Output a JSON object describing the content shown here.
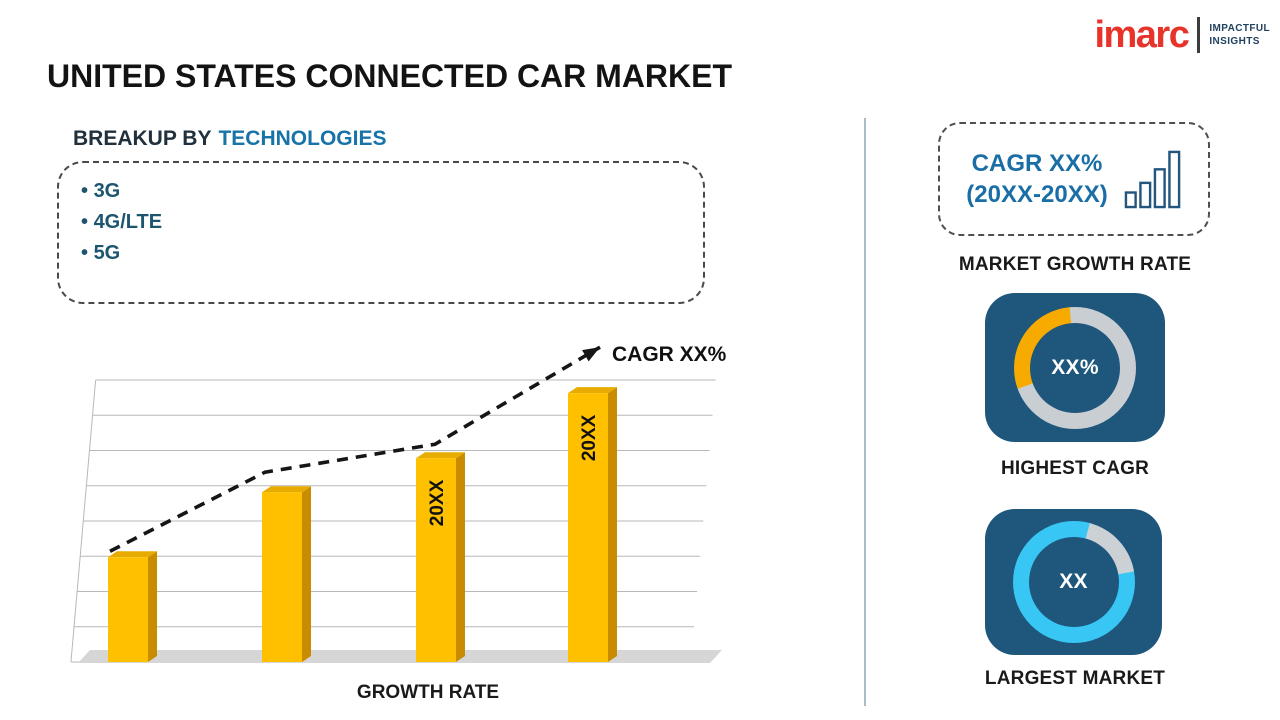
{
  "page": {
    "title": "UNITED STATES CONNECTED CAR MARKET"
  },
  "logo": {
    "brand": "imarc",
    "tagline_line1": "IMPACTFUL",
    "tagline_line2": "INSIGHTS"
  },
  "breakup": {
    "heading_prefix": "BREAKUP BY",
    "heading_accent": "TECHNOLOGIES",
    "items": [
      "3G",
      "4G/LTE",
      "5G"
    ]
  },
  "chart_data": {
    "type": "bar",
    "title": "",
    "categories": [
      "",
      "",
      "20XX",
      "20XX"
    ],
    "values": [
      37,
      60,
      72,
      95
    ],
    "bar_labels": [
      "",
      "",
      "20XX",
      "20XX"
    ],
    "xlabel": "GROWTH RATE",
    "ylabel": "",
    "ylim": [
      0,
      100
    ],
    "grid": true,
    "gridline_count": 9,
    "legend": "none",
    "bar_color": "#FFC000",
    "bar_side_color": "#C98C00",
    "bar_top_color": "#E8AC00",
    "trend_label": "CAGR XX%",
    "trend_style": "dashed-arrow"
  },
  "right_panel": {
    "growth_box": {
      "line1": "CAGR XX%",
      "line2": "(20XX-20XX)"
    },
    "growth_box_label": "MARKET GROWTH RATE",
    "highest_cagr": {
      "value": "XX%",
      "label": "HIGHEST CAGR",
      "donut": {
        "segments": [
          {
            "color": "#c9ced3",
            "from": 0,
            "to": 250
          },
          {
            "color": "#f7ab00",
            "from": 250,
            "to": 355
          },
          {
            "color": "#c9ced3",
            "from": 355,
            "to": 360
          }
        ]
      }
    },
    "largest_market": {
      "value": "XX",
      "label": "LARGEST MARKET",
      "donut": {
        "segments": [
          {
            "color": "#38c6f4",
            "from": 0,
            "to": 15
          },
          {
            "color": "#ccd1d5",
            "from": 15,
            "to": 80
          },
          {
            "color": "#38c6f4",
            "from": 80,
            "to": 360
          }
        ]
      }
    }
  },
  "colors": {
    "accent_blue": "#1873a8",
    "cagr_text_blue": "#1a6ea6",
    "list_navy": "#1d5570",
    "card_navy": "#1e567c",
    "bar_gold": "#FFC000",
    "donut_yellow": "#f7ab00",
    "donut_cyan": "#38c6f4",
    "donut_gray": "#c9ced3",
    "logo_red": "#e8332a",
    "divider_gray": "#a8bcc9"
  }
}
